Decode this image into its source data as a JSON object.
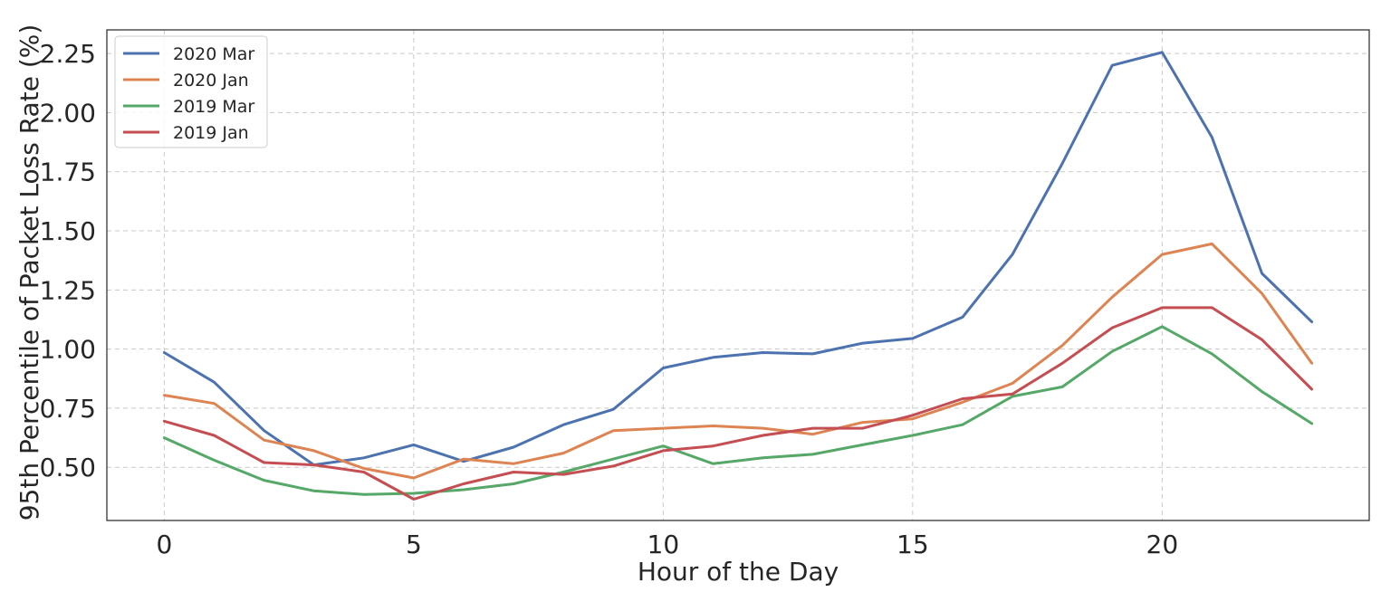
{
  "chart_data": {
    "type": "line",
    "xlabel": "Hour of the Day",
    "ylabel": "95th Percentile of Packet Loss Rate (%)",
    "xlim": [
      -1.15,
      24.15
    ],
    "ylim": [
      0.275,
      2.35
    ],
    "x_ticks": [
      0,
      5,
      10,
      15,
      20
    ],
    "y_ticks": [
      0.5,
      0.75,
      1.0,
      1.25,
      1.5,
      1.75,
      2.0,
      2.25
    ],
    "y_tick_labels": [
      "0.50",
      "0.75",
      "1.00",
      "1.25",
      "1.50",
      "1.75",
      "2.00",
      "2.25"
    ],
    "grid": true,
    "legend_position": "top-left",
    "x": [
      0,
      1,
      2,
      3,
      4,
      5,
      6,
      7,
      8,
      9,
      10,
      11,
      12,
      13,
      14,
      15,
      16,
      17,
      18,
      19,
      20,
      21,
      22,
      23
    ],
    "series": [
      {
        "name": "2020 Mar",
        "color": "#4c72b0",
        "values": [
          0.985,
          0.86,
          0.655,
          0.51,
          0.54,
          0.595,
          0.525,
          0.585,
          0.68,
          0.745,
          0.92,
          0.965,
          0.985,
          0.98,
          1.025,
          1.045,
          1.135,
          1.4,
          1.785,
          2.2,
          2.255,
          1.895,
          1.32,
          1.115
        ]
      },
      {
        "name": "2020 Jan",
        "color": "#dd8452",
        "values": [
          0.805,
          0.77,
          0.615,
          0.57,
          0.495,
          0.455,
          0.535,
          0.515,
          0.56,
          0.655,
          0.665,
          0.675,
          0.665,
          0.64,
          0.69,
          0.705,
          0.775,
          0.855,
          1.015,
          1.22,
          1.4,
          1.445,
          1.235,
          0.94
        ]
      },
      {
        "name": "2019 Mar",
        "color": "#55a868",
        "values": [
          0.625,
          0.53,
          0.445,
          0.4,
          0.385,
          0.39,
          0.405,
          0.43,
          0.48,
          0.535,
          0.59,
          0.515,
          0.54,
          0.555,
          0.595,
          0.635,
          0.68,
          0.8,
          0.84,
          0.99,
          1.095,
          0.98,
          0.82,
          0.685
        ]
      },
      {
        "name": "2019 Jan",
        "color": "#c44e52",
        "values": [
          0.695,
          0.635,
          0.52,
          0.51,
          0.48,
          0.365,
          0.43,
          0.48,
          0.47,
          0.505,
          0.57,
          0.59,
          0.635,
          0.665,
          0.665,
          0.72,
          0.79,
          0.81,
          0.94,
          1.09,
          1.175,
          1.175,
          1.04,
          0.83
        ]
      }
    ]
  }
}
